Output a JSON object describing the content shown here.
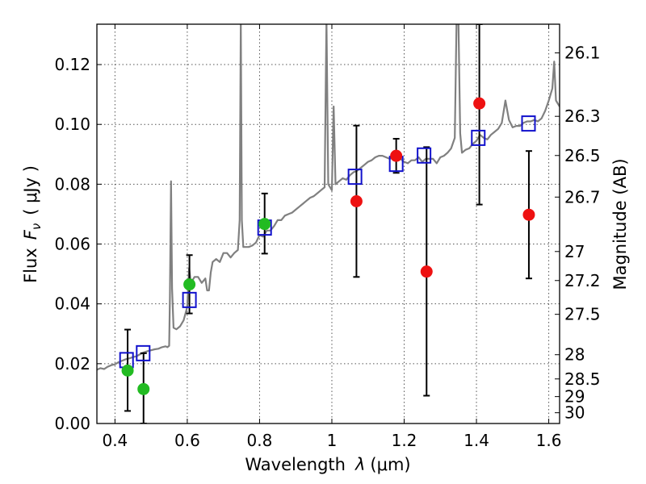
{
  "chart_data": {
    "type": "scatter",
    "xlabel_text": "Wavelength",
    "xlabel_symbol": "λ",
    "xlabel_unit": "(μm)",
    "ylabel_text": "Flux",
    "ylabel_symbol": "F",
    "ylabel_sub": "ν",
    "ylabel_unit": "( μJy )",
    "y2label": "Magnitude (AB)",
    "xlim": [
      0.35,
      1.63
    ],
    "ylim": [
      0.0,
      0.1335
    ],
    "xticks": [
      0.4,
      0.6,
      0.8,
      1.0,
      1.2,
      1.4,
      1.6
    ],
    "xtick_labels": [
      "0.4",
      "0.6",
      "0.8",
      "1",
      "1.2",
      "1.4",
      "1.6"
    ],
    "yticks": [
      0.0,
      0.02,
      0.04,
      0.06,
      0.08,
      0.1,
      0.12
    ],
    "ytick_labels": [
      "0.00",
      "0.02",
      "0.04",
      "0.06",
      "0.08",
      "0.10",
      "0.12"
    ],
    "mag_ticks": [
      {
        "flux": 0.1239,
        "label": "26.1"
      },
      {
        "flux": 0.1027,
        "label": "26.3"
      },
      {
        "flux": 0.0896,
        "label": "26.5"
      },
      {
        "flux": 0.0757,
        "label": "26.7"
      },
      {
        "flux": 0.0575,
        "label": "27"
      },
      {
        "flux": 0.0478,
        "label": "27.2"
      },
      {
        "flux": 0.0365,
        "label": "27.5"
      },
      {
        "flux": 0.023,
        "label": "28"
      },
      {
        "flux": 0.0149,
        "label": "28.5"
      },
      {
        "flux": 0.009,
        "label": "29"
      },
      {
        "flux": 0.0036,
        "label": "30"
      }
    ],
    "grid": true,
    "colors": {
      "spectrum": "#808080",
      "green_points": "#22bb22",
      "red_points": "#ee1111",
      "model_squares": "#1111cc",
      "errorbars": "#000000"
    },
    "series": [
      {
        "name": "model spectrum",
        "kind": "line",
        "points": [
          [
            0.35,
            0.018
          ],
          [
            0.36,
            0.0185
          ],
          [
            0.37,
            0.0182
          ],
          [
            0.38,
            0.019
          ],
          [
            0.39,
            0.0195
          ],
          [
            0.4,
            0.0198
          ],
          [
            0.41,
            0.0205
          ],
          [
            0.42,
            0.021
          ],
          [
            0.43,
            0.0215
          ],
          [
            0.44,
            0.0218
          ],
          [
            0.45,
            0.0222
          ],
          [
            0.46,
            0.0225
          ],
          [
            0.47,
            0.0232
          ],
          [
            0.48,
            0.0238
          ],
          [
            0.49,
            0.0242
          ],
          [
            0.5,
            0.0245
          ],
          [
            0.51,
            0.0248
          ],
          [
            0.52,
            0.025
          ],
          [
            0.53,
            0.0255
          ],
          [
            0.54,
            0.0258
          ],
          [
            0.545,
            0.0255
          ],
          [
            0.55,
            0.026
          ],
          [
            0.552,
            0.042
          ],
          [
            0.555,
            0.081
          ],
          [
            0.558,
            0.045
          ],
          [
            0.562,
            0.032
          ],
          [
            0.57,
            0.0315
          ],
          [
            0.58,
            0.0325
          ],
          [
            0.59,
            0.0345
          ],
          [
            0.6,
            0.039
          ],
          [
            0.605,
            0.052
          ],
          [
            0.61,
            0.047
          ],
          [
            0.62,
            0.049
          ],
          [
            0.63,
            0.049
          ],
          [
            0.64,
            0.047
          ],
          [
            0.65,
            0.0485
          ],
          [
            0.655,
            0.0445
          ],
          [
            0.66,
            0.0445
          ],
          [
            0.665,
            0.0505
          ],
          [
            0.67,
            0.054
          ],
          [
            0.68,
            0.055
          ],
          [
            0.69,
            0.054
          ],
          [
            0.7,
            0.057
          ],
          [
            0.71,
            0.057
          ],
          [
            0.72,
            0.0555
          ],
          [
            0.73,
            0.057
          ],
          [
            0.74,
            0.058
          ],
          [
            0.745,
            0.068
          ],
          [
            0.748,
            0.135
          ],
          [
            0.751,
            0.068
          ],
          [
            0.755,
            0.059
          ],
          [
            0.77,
            0.059
          ],
          [
            0.78,
            0.0595
          ],
          [
            0.79,
            0.0605
          ],
          [
            0.8,
            0.063
          ],
          [
            0.81,
            0.0625
          ],
          [
            0.82,
            0.0645
          ],
          [
            0.83,
            0.0645
          ],
          [
            0.84,
            0.066
          ],
          [
            0.85,
            0.068
          ],
          [
            0.86,
            0.068
          ],
          [
            0.87,
            0.0695
          ],
          [
            0.88,
            0.07
          ],
          [
            0.89,
            0.0705
          ],
          [
            0.9,
            0.0715
          ],
          [
            0.91,
            0.0725
          ],
          [
            0.92,
            0.0735
          ],
          [
            0.93,
            0.0745
          ],
          [
            0.94,
            0.0755
          ],
          [
            0.95,
            0.076
          ],
          [
            0.96,
            0.077
          ],
          [
            0.97,
            0.078
          ],
          [
            0.98,
            0.079
          ],
          [
            0.985,
            0.135
          ],
          [
            0.99,
            0.08
          ],
          [
            1.0,
            0.078
          ],
          [
            1.005,
            0.106
          ],
          [
            1.01,
            0.08
          ],
          [
            1.02,
            0.081
          ],
          [
            1.03,
            0.082
          ],
          [
            1.04,
            0.0815
          ],
          [
            1.05,
            0.083
          ],
          [
            1.06,
            0.084
          ],
          [
            1.07,
            0.0845
          ],
          [
            1.08,
            0.0855
          ],
          [
            1.09,
            0.0865
          ],
          [
            1.1,
            0.0875
          ],
          [
            1.11,
            0.088
          ],
          [
            1.12,
            0.089
          ],
          [
            1.13,
            0.0895
          ],
          [
            1.14,
            0.0895
          ],
          [
            1.15,
            0.089
          ],
          [
            1.16,
            0.0885
          ],
          [
            1.17,
            0.089
          ],
          [
            1.18,
            0.0895
          ],
          [
            1.19,
            0.0885
          ],
          [
            1.2,
            0.0875
          ],
          [
            1.21,
            0.087
          ],
          [
            1.22,
            0.088
          ],
          [
            1.23,
            0.088
          ],
          [
            1.24,
            0.089
          ],
          [
            1.25,
            0.0875
          ],
          [
            1.26,
            0.0885
          ],
          [
            1.27,
            0.0885
          ],
          [
            1.28,
            0.0885
          ],
          [
            1.29,
            0.087
          ],
          [
            1.3,
            0.089
          ],
          [
            1.31,
            0.0895
          ],
          [
            1.32,
            0.0905
          ],
          [
            1.33,
            0.092
          ],
          [
            1.34,
            0.0955
          ],
          [
            1.345,
            0.135
          ],
          [
            1.35,
            0.135
          ],
          [
            1.355,
            0.097
          ],
          [
            1.36,
            0.0905
          ],
          [
            1.37,
            0.0915
          ],
          [
            1.38,
            0.092
          ],
          [
            1.39,
            0.0935
          ],
          [
            1.4,
            0.0945
          ],
          [
            1.41,
            0.0965
          ],
          [
            1.42,
            0.0955
          ],
          [
            1.43,
            0.095
          ],
          [
            1.44,
            0.0965
          ],
          [
            1.45,
            0.0975
          ],
          [
            1.46,
            0.0985
          ],
          [
            1.47,
            0.1005
          ],
          [
            1.48,
            0.108
          ],
          [
            1.49,
            0.1015
          ],
          [
            1.5,
            0.099
          ],
          [
            1.51,
            0.0995
          ],
          [
            1.52,
            0.0995
          ],
          [
            1.53,
            0.1005
          ],
          [
            1.54,
            0.101
          ],
          [
            1.55,
            0.101
          ],
          [
            1.56,
            0.1015
          ],
          [
            1.57,
            0.101
          ],
          [
            1.58,
            0.102
          ],
          [
            1.59,
            0.1045
          ],
          [
            1.6,
            0.108
          ],
          [
            1.61,
            0.112
          ],
          [
            1.615,
            0.121
          ],
          [
            1.62,
            0.108
          ],
          [
            1.63,
            0.106
          ]
        ]
      },
      {
        "name": "green photometry",
        "kind": "points",
        "points": [
          {
            "x": 0.435,
            "y": 0.0177,
            "err": 0.0
          },
          {
            "x": 0.479,
            "y": 0.0115,
            "err": 0.0
          },
          {
            "x": 0.606,
            "y": 0.0465,
            "err": 0.0
          },
          {
            "x": 0.814,
            "y": 0.0667,
            "err": 0.0
          }
        ]
      },
      {
        "name": "red photometry",
        "kind": "points",
        "points": [
          {
            "x": 1.068,
            "y": 0.0743,
            "err": 0.0
          },
          {
            "x": 1.178,
            "y": 0.0895,
            "err": 0.0
          },
          {
            "x": 1.262,
            "y": 0.0508,
            "err": 0.0
          },
          {
            "x": 1.408,
            "y": 0.107,
            "err": 0.0
          },
          {
            "x": 1.545,
            "y": 0.0698,
            "err": 0.0
          }
        ]
      },
      {
        "name": "model photometry",
        "kind": "squares",
        "points": [
          {
            "x": 0.432,
            "y": 0.0212
          },
          {
            "x": 0.478,
            "y": 0.0235
          },
          {
            "x": 0.606,
            "y": 0.0413
          },
          {
            "x": 0.814,
            "y": 0.0655
          },
          {
            "x": 1.064,
            "y": 0.0825
          },
          {
            "x": 1.178,
            "y": 0.0868
          },
          {
            "x": 1.255,
            "y": 0.0896
          },
          {
            "x": 1.405,
            "y": 0.0955
          },
          {
            "x": 1.544,
            "y": 0.1003
          }
        ]
      },
      {
        "name": "error bars",
        "kind": "errorbars",
        "points": [
          {
            "x": 0.435,
            "ylow": 0.0042,
            "yhigh": 0.0314
          },
          {
            "x": 0.479,
            "ylow": 0.0,
            "yhigh": 0.0235
          },
          {
            "x": 0.606,
            "ylow": 0.0368,
            "yhigh": 0.0563
          },
          {
            "x": 0.814,
            "ylow": 0.0568,
            "yhigh": 0.0769
          },
          {
            "x": 1.068,
            "ylow": 0.049,
            "yhigh": 0.0996
          },
          {
            "x": 1.178,
            "ylow": 0.0838,
            "yhigh": 0.0952
          },
          {
            "x": 1.262,
            "ylow": 0.0093,
            "yhigh": 0.0924
          },
          {
            "x": 1.408,
            "ylow": 0.0732,
            "yhigh": 0.1335
          },
          {
            "x": 1.545,
            "ylow": 0.0485,
            "yhigh": 0.0911
          }
        ]
      }
    ]
  }
}
